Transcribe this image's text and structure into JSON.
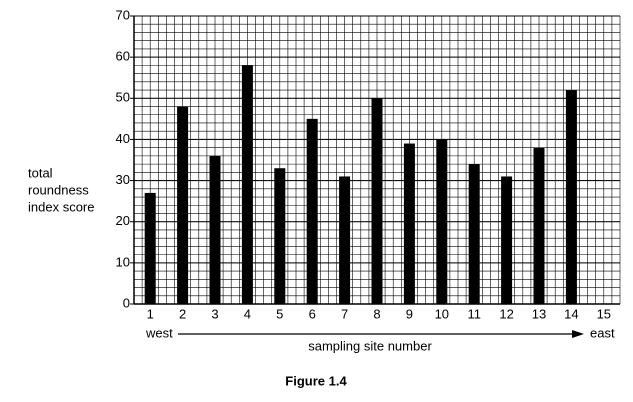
{
  "chart_data": {
    "type": "bar",
    "y_label": [
      "total",
      "roundness",
      "index score"
    ],
    "x_label": "sampling site number",
    "direction_labels": [
      "west",
      "east"
    ],
    "caption": "Figure 1.4",
    "categories": [
      "1",
      "2",
      "3",
      "4",
      "5",
      "6",
      "7",
      "8",
      "9",
      "10",
      "11",
      "12",
      "13",
      "14",
      "15"
    ],
    "values": [
      27,
      48,
      36,
      58,
      33,
      45,
      31,
      50,
      39,
      40,
      34,
      31,
      38,
      52,
      null
    ],
    "color": "#000000",
    "ylim": [
      0,
      70
    ],
    "yticks": [
      0,
      10,
      20,
      30,
      40,
      50,
      60,
      70
    ],
    "grid": true
  }
}
